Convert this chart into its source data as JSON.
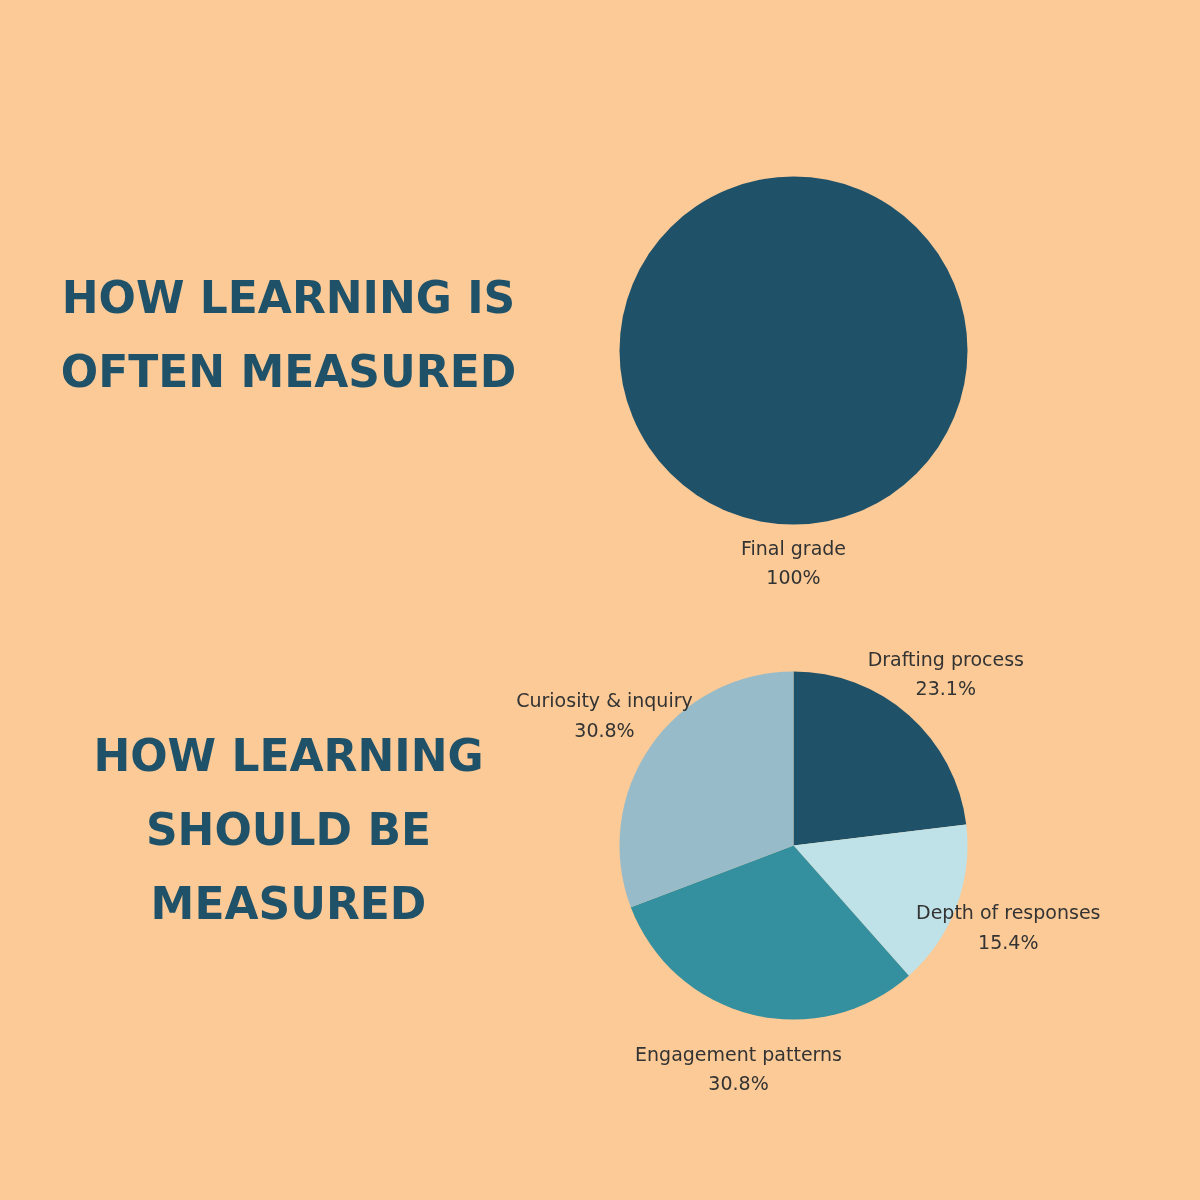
{
  "chart_data": [
    {
      "type": "pie",
      "title": "HOW LEARNING IS\nOFTEN MEASURED",
      "categories": [
        "Final grade"
      ],
      "values": [
        100
      ],
      "value_labels": [
        "100%"
      ],
      "colors": [
        "#1f5169"
      ]
    },
    {
      "type": "pie",
      "title": "HOW LEARNING\nSHOULD BE\nMEASURED",
      "categories": [
        "Drafting process",
        "Depth of responses",
        "Engagement patterns",
        "Curiosity & inquiry"
      ],
      "values": [
        23.1,
        15.4,
        30.8,
        30.8
      ],
      "value_labels": [
        "23.1%",
        "15.4%",
        "30.8%",
        "30.8%"
      ],
      "colors": [
        "#1f5169",
        "#bfe2e8",
        "#348f9e",
        "#97bbc9"
      ]
    }
  ]
}
